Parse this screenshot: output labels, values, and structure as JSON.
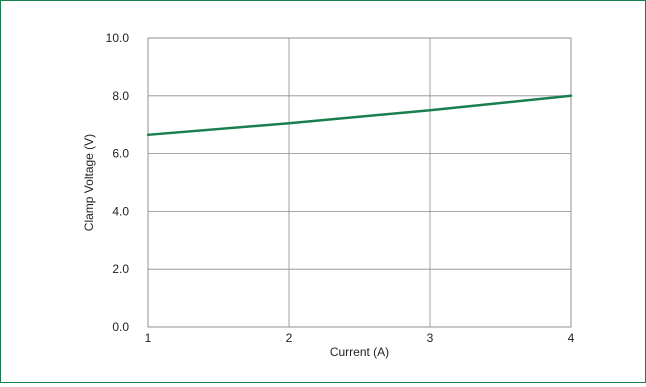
{
  "chart_data": {
    "type": "line",
    "title": "",
    "xlabel": "Current (A)",
    "ylabel": "Clamp Voltage (V)",
    "xlim": [
      1,
      4
    ],
    "ylim": [
      0,
      10
    ],
    "x_ticks": [
      "1",
      "2",
      "3",
      "4"
    ],
    "y_ticks": [
      "0.0",
      "2.0",
      "4.0",
      "6.0",
      "8.0",
      "10.0"
    ],
    "grid": true,
    "legend": "none",
    "series": [
      {
        "color": "#1a7f4f",
        "x": [
          1,
          2,
          3,
          4
        ],
        "y": [
          6.65,
          7.05,
          7.5,
          8.0
        ]
      }
    ]
  },
  "colors": {
    "frame_border": "#1a7f4f",
    "grid": "#8c8c8c"
  }
}
